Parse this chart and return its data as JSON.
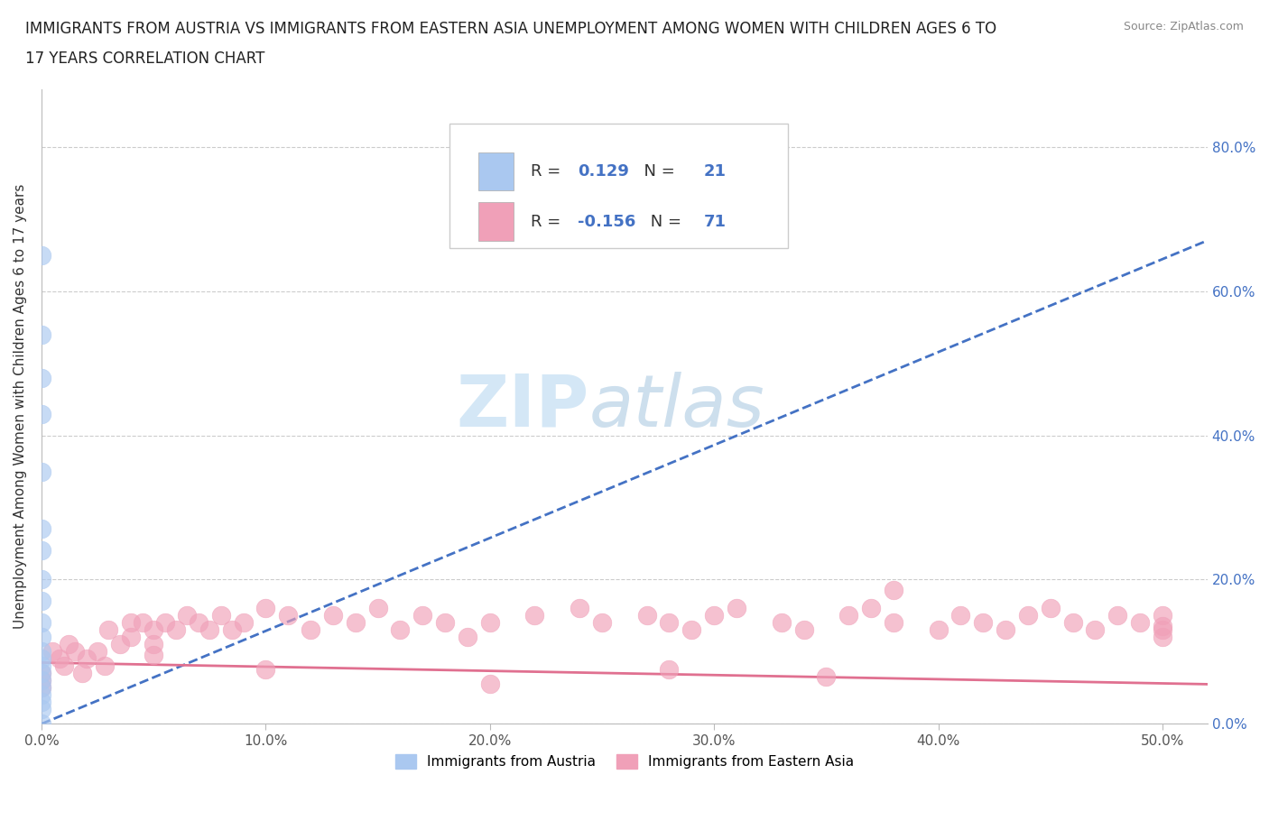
{
  "title_line1": "IMMIGRANTS FROM AUSTRIA VS IMMIGRANTS FROM EASTERN ASIA UNEMPLOYMENT AMONG WOMEN WITH CHILDREN AGES 6 TO",
  "title_line2": "17 YEARS CORRELATION CHART",
  "source": "Source: ZipAtlas.com",
  "ylabel": "Unemployment Among Women with Children Ages 6 to 17 years",
  "xlim": [
    0.0,
    0.52
  ],
  "ylim": [
    0.0,
    0.88
  ],
  "watermark_zip": "ZIP",
  "watermark_atlas": "atlas",
  "legend1_label": "Immigrants from Austria",
  "legend2_label": "Immigrants from Eastern Asia",
  "R1": 0.129,
  "N1": 21,
  "R2": -0.156,
  "N2": 71,
  "color_blue": "#aac8f0",
  "color_pink": "#f0a0b8",
  "trendline_blue": "#4472c4",
  "trendline_pink": "#e07090",
  "austria_x": [
    0.0,
    0.0,
    0.0,
    0.0,
    0.0,
    0.0,
    0.0,
    0.0,
    0.0,
    0.0,
    0.0,
    0.0,
    0.0,
    0.0,
    0.0,
    0.0,
    0.0,
    0.0,
    0.0,
    0.0,
    0.0
  ],
  "austria_y": [
    0.65,
    0.54,
    0.48,
    0.43,
    0.35,
    0.27,
    0.24,
    0.2,
    0.17,
    0.14,
    0.12,
    0.1,
    0.09,
    0.08,
    0.07,
    0.06,
    0.05,
    0.04,
    0.03,
    0.02,
    0.0
  ],
  "blue_trend_x": [
    0.0,
    0.52
  ],
  "blue_trend_y": [
    0.0,
    0.67
  ],
  "pink_trend_x": [
    0.0,
    0.52
  ],
  "pink_trend_y": [
    0.085,
    0.055
  ],
  "ea_x": [
    0.0,
    0.0,
    0.0,
    0.005,
    0.008,
    0.01,
    0.012,
    0.015,
    0.018,
    0.02,
    0.025,
    0.028,
    0.03,
    0.035,
    0.04,
    0.04,
    0.045,
    0.05,
    0.05,
    0.055,
    0.06,
    0.065,
    0.07,
    0.075,
    0.08,
    0.085,
    0.09,
    0.1,
    0.11,
    0.12,
    0.13,
    0.14,
    0.15,
    0.16,
    0.17,
    0.18,
    0.19,
    0.2,
    0.22,
    0.24,
    0.25,
    0.27,
    0.28,
    0.29,
    0.3,
    0.31,
    0.33,
    0.34,
    0.36,
    0.37,
    0.38,
    0.4,
    0.41,
    0.42,
    0.43,
    0.44,
    0.45,
    0.46,
    0.47,
    0.48,
    0.49,
    0.5,
    0.5,
    0.5,
    0.38,
    0.5,
    0.35,
    0.28,
    0.2,
    0.1,
    0.05
  ],
  "ea_y": [
    0.07,
    0.06,
    0.05,
    0.1,
    0.09,
    0.08,
    0.11,
    0.1,
    0.07,
    0.09,
    0.1,
    0.08,
    0.13,
    0.11,
    0.14,
    0.12,
    0.14,
    0.13,
    0.11,
    0.14,
    0.13,
    0.15,
    0.14,
    0.13,
    0.15,
    0.13,
    0.14,
    0.16,
    0.15,
    0.13,
    0.15,
    0.14,
    0.16,
    0.13,
    0.15,
    0.14,
    0.12,
    0.14,
    0.15,
    0.16,
    0.14,
    0.15,
    0.14,
    0.13,
    0.15,
    0.16,
    0.14,
    0.13,
    0.15,
    0.16,
    0.14,
    0.13,
    0.15,
    0.14,
    0.13,
    0.15,
    0.16,
    0.14,
    0.13,
    0.15,
    0.14,
    0.15,
    0.13,
    0.12,
    0.185,
    0.135,
    0.065,
    0.075,
    0.055,
    0.075,
    0.095
  ]
}
